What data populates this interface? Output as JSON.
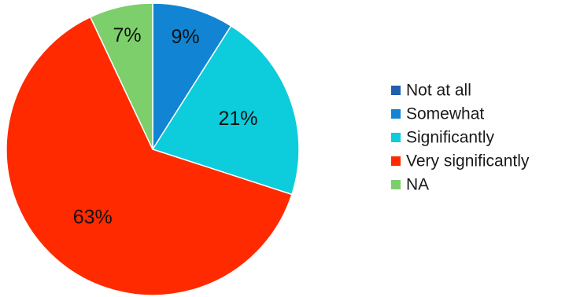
{
  "chart_data": {
    "type": "pie",
    "title": "",
    "legend": {
      "placement": "right"
    },
    "slices": [
      {
        "label": "Not at all",
        "value": 0,
        "data_label": "",
        "color": "#1f5fae"
      },
      {
        "label": "Somewhat",
        "value": 9,
        "data_label": "9%",
        "color": "#1184d3"
      },
      {
        "label": "Significantly",
        "value": 21,
        "data_label": "21%",
        "color": "#0dccdb"
      },
      {
        "label": "Very significantly",
        "value": 63,
        "data_label": "63%",
        "color": "#ff2a00"
      },
      {
        "label": "NA",
        "value": 7,
        "data_label": "7%",
        "color": "#7ccf6a"
      }
    ]
  }
}
